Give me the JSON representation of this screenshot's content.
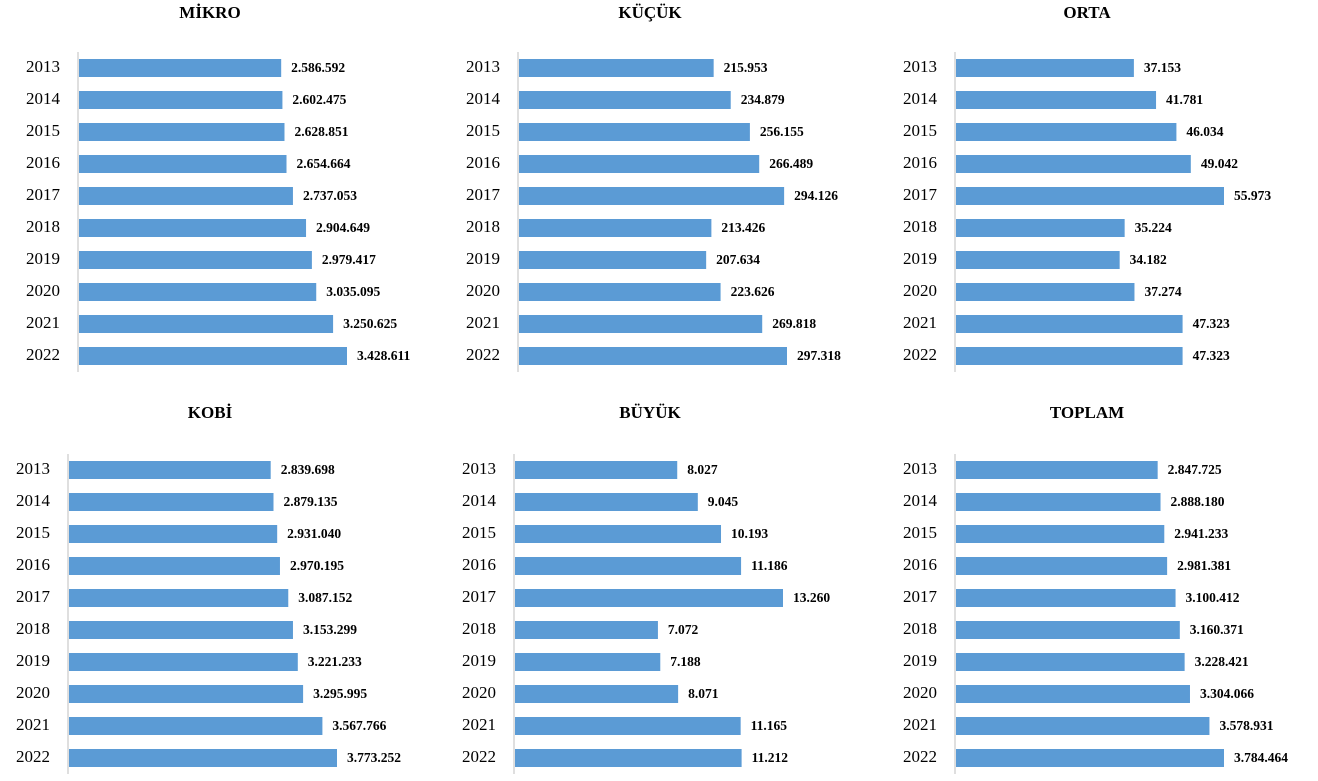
{
  "chart_data": [
    {
      "type": "bar",
      "title": "MİKRO",
      "color": "#5b9bd5",
      "categories": [
        "2013",
        "2014",
        "2015",
        "2016",
        "2017",
        "2018",
        "2019",
        "2020",
        "2021",
        "2022"
      ],
      "values": [
        2586592,
        2602475,
        2628851,
        2654664,
        2737053,
        2904649,
        2979417,
        3035095,
        3250625,
        3428611
      ],
      "value_labels": [
        "2.586.592",
        "2.602.475",
        "2.628.851",
        "2.654.664",
        "2.737.053",
        "2.904.649",
        "2.979.417",
        "3.035.095",
        "3.250.625",
        "3.428.611"
      ]
    },
    {
      "type": "bar",
      "title": "KÜÇÜK",
      "color": "#5b9bd5",
      "categories": [
        "2013",
        "2014",
        "2015",
        "2016",
        "2017",
        "2018",
        "2019",
        "2020",
        "2021",
        "2022"
      ],
      "values": [
        215953,
        234879,
        256155,
        266489,
        294126,
        213426,
        207634,
        223626,
        269818,
        297318
      ],
      "value_labels": [
        "215.953",
        "234.879",
        "256.155",
        "266.489",
        "294.126",
        "213.426",
        "207.634",
        "223.626",
        "269.818",
        "297.318"
      ]
    },
    {
      "type": "bar",
      "title": "ORTA",
      "color": "#5b9bd5",
      "categories": [
        "2013",
        "2014",
        "2015",
        "2016",
        "2017",
        "2018",
        "2019",
        "2020",
        "2021",
        "2022"
      ],
      "values": [
        37153,
        41781,
        46034,
        49042,
        55973,
        35224,
        34182,
        37274,
        47323,
        47323
      ],
      "value_labels": [
        "37.153",
        "41.781",
        "46.034",
        "49.042",
        "55.973",
        "35.224",
        "34.182",
        "37.274",
        "47.323",
        "47.323"
      ]
    },
    {
      "type": "bar",
      "title": "KOBİ",
      "color": "#5b9bd5",
      "categories": [
        "2013",
        "2014",
        "2015",
        "2016",
        "2017",
        "2018",
        "2019",
        "2020",
        "2021",
        "2022"
      ],
      "values": [
        2839698,
        2879135,
        2931040,
        2970195,
        3087152,
        3153299,
        3221233,
        3295995,
        3567766,
        3773252
      ],
      "value_labels": [
        "2.839.698",
        "2.879.135",
        "2.931.040",
        "2.970.195",
        "3.087.152",
        "3.153.299",
        "3.221.233",
        "3.295.995",
        "3.567.766",
        "3.773.252"
      ]
    },
    {
      "type": "bar",
      "title": "BÜYÜK",
      "color": "#5b9bd5",
      "categories": [
        "2013",
        "2014",
        "2015",
        "2016",
        "2017",
        "2018",
        "2019",
        "2020",
        "2021",
        "2022"
      ],
      "values": [
        8027,
        9045,
        10193,
        11186,
        13260,
        7072,
        7188,
        8071,
        11165,
        11212
      ],
      "value_labels": [
        "8.027",
        "9.045",
        "10.193",
        "11.186",
        "13.260",
        "7.072",
        "7.188",
        "8.071",
        "11.165",
        "11.212"
      ]
    },
    {
      "type": "bar",
      "title": "TOPLAM",
      "color": "#5b9bd5",
      "categories": [
        "2013",
        "2014",
        "2015",
        "2016",
        "2017",
        "2018",
        "2019",
        "2020",
        "2021",
        "2022"
      ],
      "values": [
        2847725,
        2888180,
        2941233,
        2981381,
        3100412,
        3160371,
        3228421,
        3304066,
        3578931,
        3784464
      ],
      "value_labels": [
        "2.847.725",
        "2.888.180",
        "2.941.233",
        "2.981.381",
        "3.100.412",
        "3.160.371",
        "3.228.421",
        "3.304.066",
        "3.578.931",
        "3.784.464"
      ]
    }
  ]
}
